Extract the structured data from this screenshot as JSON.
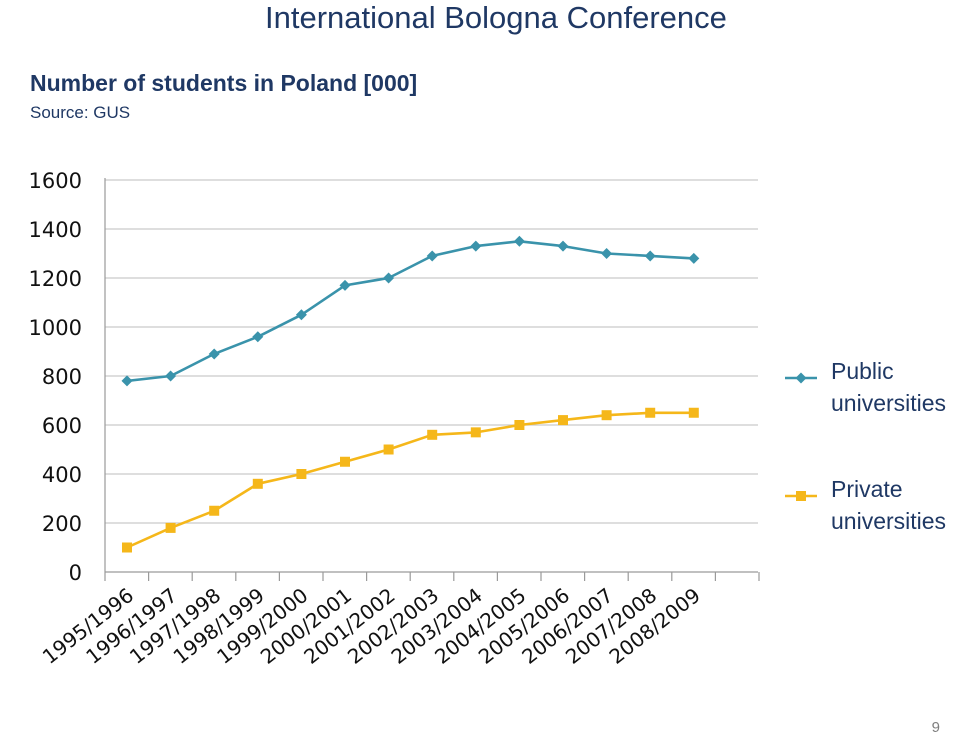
{
  "header": {
    "title": "International Bologna Conference"
  },
  "page_number": "9",
  "chart_data": {
    "type": "line",
    "title": "Number of students in Poland [000]",
    "subtitle": "Source: GUS",
    "xlabel": "",
    "ylabel": "",
    "categories": [
      "1995/1996",
      "1996/1997",
      "1997/1998",
      "1998/1999",
      "1999/2000",
      "2000/2001",
      "2001/2002",
      "2002/2003",
      "2003/2004",
      "2004/2005",
      "2005/2006",
      "2006/2007",
      "2007/2008",
      "2008/2009"
    ],
    "yticks": [
      "0",
      "200",
      "400",
      "600",
      "800",
      "1000",
      "1200",
      "1400",
      "1600"
    ],
    "ylim": [
      0,
      1600
    ],
    "grid": true,
    "legend_position": "right",
    "series": [
      {
        "name": "Public universities",
        "name_lines": [
          "Public",
          "universities"
        ],
        "color": "#3a93ab",
        "marker": "diamond",
        "values": [
          780,
          800,
          890,
          960,
          1050,
          1170,
          1200,
          1290,
          1330,
          1350,
          1330,
          1300,
          1290,
          1280
        ]
      },
      {
        "name": "Private universities",
        "name_lines": [
          "Private",
          "universities"
        ],
        "color": "#f5b71a",
        "marker": "square",
        "values": [
          100,
          180,
          250,
          360,
          400,
          450,
          500,
          560,
          570,
          600,
          620,
          640,
          650,
          650
        ]
      }
    ]
  }
}
